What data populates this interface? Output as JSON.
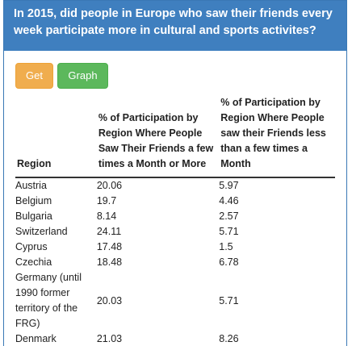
{
  "header": {
    "title": "In 2015, did people in Europe who saw their friends every week participate more in cultural and sports activites?"
  },
  "buttons": {
    "get": "Get",
    "graph": "Graph"
  },
  "table": {
    "columns": [
      "Region",
      "% of Participation by Region Where People Saw Their Friends a few times a Month or More",
      "% of Participation by Region Where People saw their Friends less than a few times a Month"
    ],
    "rows": [
      [
        "Austria",
        "20.06",
        "5.97"
      ],
      [
        "Belgium",
        "19.7",
        "4.46"
      ],
      [
        "Bulgaria",
        "8.14",
        "2.57"
      ],
      [
        "Switzerland",
        "24.11",
        "5.71"
      ],
      [
        "Cyprus",
        "17.48",
        "1.5"
      ],
      [
        "Czechia",
        "18.48",
        "6.78"
      ],
      [
        "Germany (until 1990 former territory of the FRG)",
        "20.03",
        "5.71"
      ],
      [
        "Denmark",
        "21.03",
        "8.26"
      ]
    ]
  }
}
